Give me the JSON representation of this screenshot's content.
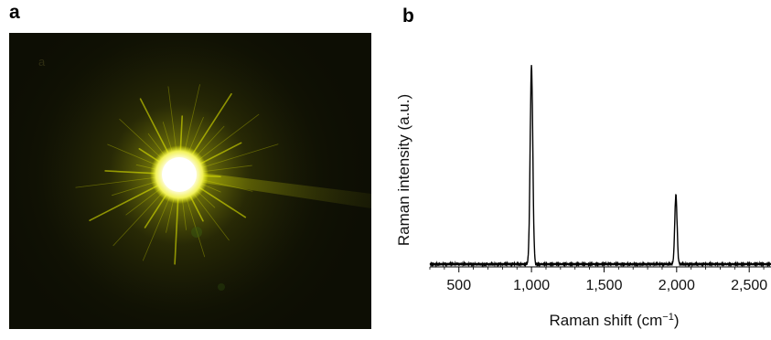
{
  "panels": {
    "a": "a",
    "b": "b"
  },
  "photo": {
    "inset_label": "a",
    "colors": {
      "background": "#0d0e04",
      "glow": "#e9f000",
      "core": "#fffde0"
    }
  },
  "chart_data": {
    "type": "line",
    "xlabel": "Raman shift (cm",
    "xlabel_sup": "−1",
    "xlabel_end": ")",
    "ylabel": "Raman intensity (a.u.)",
    "xlim": [
      300,
      2650
    ],
    "ylim": [
      0,
      1.0
    ],
    "x_ticks": [
      500,
      1000,
      1500,
      2000,
      2500
    ],
    "x_tick_labels": [
      "500",
      "1,000",
      "1,500",
      "2,000",
      "2,500"
    ],
    "peaks": [
      {
        "center": 1000,
        "height": 0.99,
        "width": 9
      },
      {
        "center": 1995,
        "height": 0.345,
        "width": 8
      }
    ],
    "baseline": 0.0,
    "line_color": "#000000"
  }
}
